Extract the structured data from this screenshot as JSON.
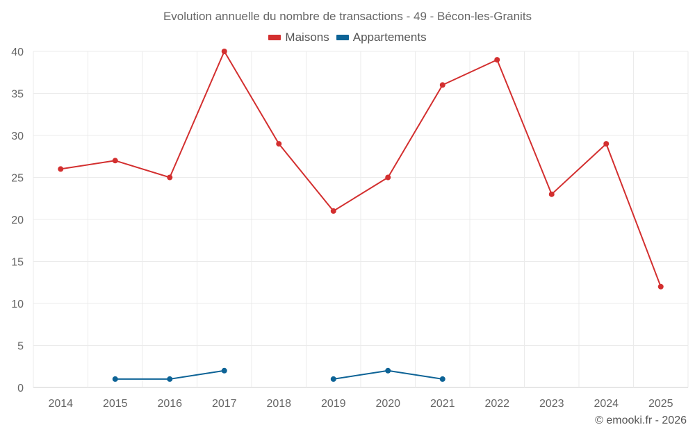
{
  "chart_data": {
    "type": "line",
    "title": "Evolution annuelle du nombre de transactions - 49 - Bécon-les-Granits",
    "categories": [
      "2014",
      "2015",
      "2016",
      "2017",
      "2018",
      "2019",
      "2020",
      "2021",
      "2022",
      "2023",
      "2024",
      "2025"
    ],
    "yticks": [
      0,
      5,
      10,
      15,
      20,
      25,
      30,
      35,
      40
    ],
    "ylim": [
      0,
      40
    ],
    "grid": true,
    "legend_position": "top-center",
    "series": [
      {
        "name": "Maisons",
        "color": "#d32f2f",
        "values": [
          26,
          27,
          25,
          40,
          29,
          21,
          25,
          36,
          39,
          23,
          29,
          12
        ]
      },
      {
        "name": "Appartements",
        "color": "#0d6396",
        "values": [
          null,
          1,
          1,
          2,
          null,
          1,
          2,
          1,
          null,
          null,
          null,
          null
        ]
      }
    ]
  },
  "footer": {
    "credit": "© emooki.fr - 2026"
  }
}
